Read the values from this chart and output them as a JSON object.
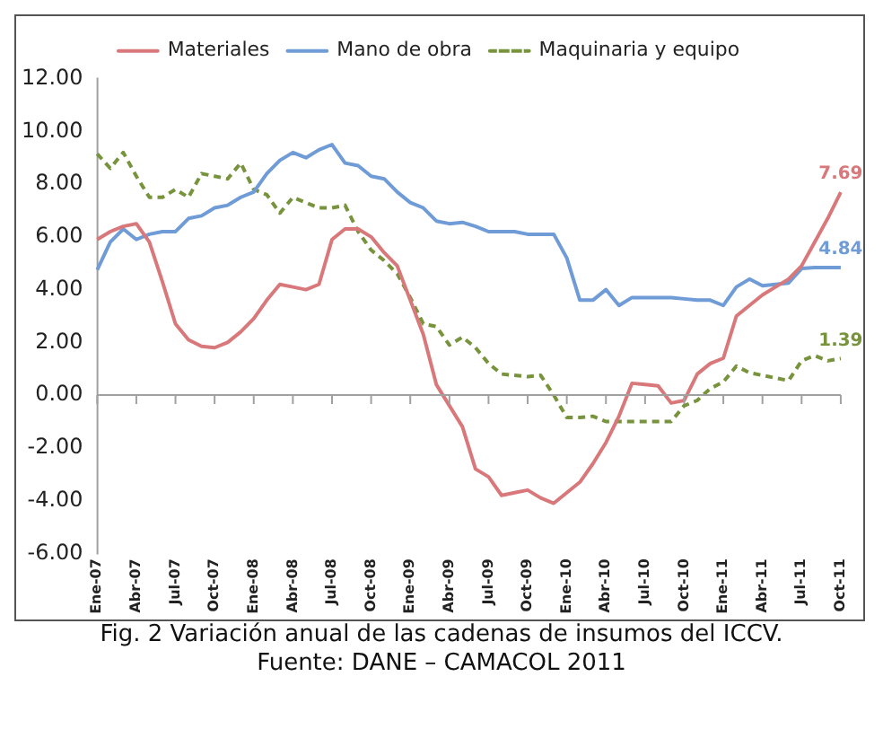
{
  "chart_data": {
    "type": "line",
    "categories": [
      "Ene-07",
      null,
      null,
      "Abr-07",
      null,
      null,
      "Jul-07",
      null,
      null,
      "Oct-07",
      null,
      null,
      "Ene-08",
      null,
      null,
      "Abr-08",
      null,
      null,
      "Jul-08",
      null,
      null,
      "Oct-08",
      null,
      null,
      "Ene-09",
      null,
      null,
      "Abr-09",
      null,
      null,
      "Jul-09",
      null,
      null,
      "Oct-09",
      null,
      null,
      "Ene-10",
      null,
      null,
      "Abr-10",
      null,
      null,
      "Jul-10",
      null,
      null,
      "Oct-10",
      null,
      null,
      "Ene-11",
      null,
      null,
      "Abr-11",
      null,
      null,
      "Jul-11",
      null,
      null,
      "Oct-11"
    ],
    "series": [
      {
        "name": "Materiales",
        "color": "#d9787a",
        "values": [
          5.9,
          6.2,
          6.4,
          6.5,
          5.8,
          4.3,
          2.7,
          2.1,
          1.85,
          1.8,
          2.0,
          2.4,
          2.9,
          3.6,
          4.2,
          4.1,
          4.0,
          4.2,
          5.9,
          6.3,
          6.3,
          6.0,
          5.4,
          4.9,
          3.6,
          2.3,
          0.4,
          -0.4,
          -1.2,
          -2.8,
          -3.1,
          -3.8,
          -3.7,
          -3.6,
          -3.9,
          -4.1,
          -3.7,
          -3.3,
          -2.6,
          -1.8,
          -0.8,
          0.45,
          0.4,
          0.35,
          -0.3,
          -0.2,
          0.8,
          1.2,
          1.4,
          3.0,
          3.4,
          3.8,
          4.1,
          4.4,
          4.9,
          5.8,
          6.7,
          7.69
        ],
        "value_labels": [
          null,
          null,
          null,
          null,
          null,
          null,
          null,
          null,
          null,
          null,
          null,
          null,
          null,
          null,
          null,
          null,
          null,
          null,
          null,
          null,
          null,
          null,
          null,
          null,
          null,
          null,
          null,
          null,
          null,
          null,
          null,
          null,
          null,
          null,
          null,
          null,
          null,
          null,
          null,
          null,
          null,
          null,
          null,
          null,
          null,
          null,
          null,
          null,
          null,
          null,
          null,
          null,
          null,
          null,
          null,
          null,
          null,
          "7.69"
        ]
      },
      {
        "name": "Mano de obra",
        "color": "#6f9bd6",
        "values": [
          4.75,
          5.8,
          6.3,
          5.9,
          6.1,
          6.2,
          6.2,
          6.7,
          6.8,
          7.1,
          7.2,
          7.5,
          7.7,
          8.4,
          8.9,
          9.2,
          9.0,
          9.3,
          9.5,
          8.8,
          8.7,
          8.3,
          8.2,
          7.7,
          7.3,
          7.1,
          6.6,
          6.5,
          6.55,
          6.4,
          6.2,
          6.2,
          6.2,
          6.1,
          6.1,
          6.1,
          5.2,
          3.6,
          3.6,
          4.0,
          3.4,
          3.7,
          3.7,
          3.7,
          3.7,
          3.65,
          3.6,
          3.6,
          3.4,
          4.1,
          4.4,
          4.15,
          4.2,
          4.25,
          4.8,
          4.84,
          4.84,
          4.84
        ],
        "value_labels": [
          null,
          null,
          null,
          null,
          null,
          null,
          null,
          null,
          null,
          null,
          null,
          null,
          null,
          null,
          null,
          null,
          null,
          null,
          null,
          null,
          null,
          null,
          null,
          null,
          null,
          null,
          null,
          null,
          null,
          null,
          null,
          null,
          null,
          null,
          null,
          null,
          null,
          null,
          null,
          null,
          null,
          null,
          null,
          null,
          null,
          null,
          null,
          null,
          null,
          null,
          null,
          null,
          null,
          null,
          null,
          null,
          null,
          "4.84"
        ]
      },
      {
        "name": "Maquinaria y equipo",
        "color": "#77933c",
        "line_style": "dashed",
        "values": [
          9.15,
          8.6,
          9.2,
          8.3,
          7.5,
          7.5,
          7.8,
          7.5,
          8.4,
          8.3,
          8.2,
          8.8,
          7.8,
          7.6,
          6.9,
          7.5,
          7.3,
          7.1,
          7.1,
          7.2,
          6.2,
          5.5,
          5.1,
          4.6,
          3.7,
          2.7,
          2.6,
          1.9,
          2.2,
          1.8,
          1.2,
          0.8,
          0.75,
          0.7,
          0.75,
          0.0,
          -0.85,
          -0.85,
          -0.8,
          -1.0,
          -1.0,
          -1.0,
          -1.0,
          -1.0,
          -1.0,
          -0.4,
          -0.2,
          0.25,
          0.5,
          1.1,
          0.85,
          0.75,
          0.65,
          0.55,
          1.3,
          1.5,
          1.3,
          1.39
        ],
        "value_labels": [
          null,
          null,
          null,
          null,
          null,
          null,
          null,
          null,
          null,
          null,
          null,
          null,
          null,
          null,
          null,
          null,
          null,
          null,
          null,
          null,
          null,
          null,
          null,
          null,
          null,
          null,
          null,
          null,
          null,
          null,
          null,
          null,
          null,
          null,
          null,
          null,
          null,
          null,
          null,
          null,
          null,
          null,
          null,
          null,
          null,
          null,
          null,
          null,
          null,
          null,
          null,
          null,
          null,
          null,
          null,
          null,
          null,
          "1.39"
        ]
      }
    ],
    "ylim": [
      -6,
      12
    ],
    "yticks": [
      {
        "value": -6,
        "label": "-6.00"
      },
      {
        "value": -4,
        "label": "-4.00"
      },
      {
        "value": -2,
        "label": "-2.00"
      },
      {
        "value": 0,
        "label": "0.00"
      },
      {
        "value": 2,
        "label": "2.00"
      },
      {
        "value": 4,
        "label": "4.00"
      },
      {
        "value": 6,
        "label": "6.00"
      },
      {
        "value": 8,
        "label": "8.00"
      },
      {
        "value": 10,
        "label": "10.00"
      },
      {
        "value": 12,
        "label": "12.00"
      }
    ],
    "ref_lines": [
      {
        "axis": "y",
        "value": 0,
        "color": "#a0a0a0"
      }
    ],
    "grid": false,
    "legend": "top",
    "marker": "none",
    "line_style": "solid",
    "annotations": [
      "Fig. 2 Variación anual de las cadenas de insumos del ICCV.",
      "Fuente: DANE – CAMACOL 2011"
    ]
  }
}
